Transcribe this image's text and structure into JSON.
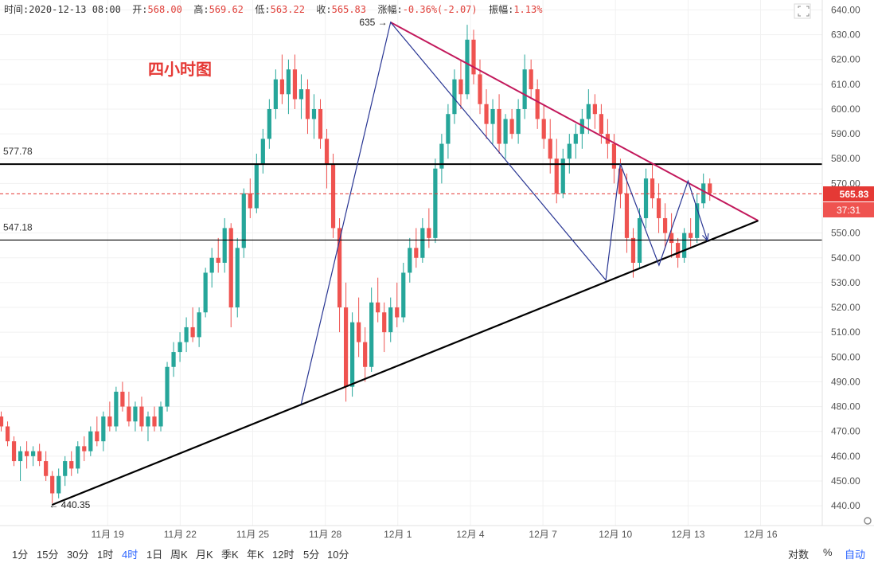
{
  "ohlc": {
    "time_label": "时间:",
    "time": "2020-12-13 08:00",
    "open_label": "开:",
    "open": "568.00",
    "high_label": "高:",
    "high": "569.62",
    "low_label": "低:",
    "low": "563.22",
    "close_label": "收:",
    "close": "565.83",
    "change_label": "涨幅:",
    "change": "-0.36%(-2.07)",
    "amplitude_label": "振幅:",
    "amplitude": "1.13%"
  },
  "chart_title": "四小时图",
  "periods": [
    {
      "label": "1分",
      "active": false
    },
    {
      "label": "15分",
      "active": false
    },
    {
      "label": "30分",
      "active": false
    },
    {
      "label": "1时",
      "active": false
    },
    {
      "label": "4时",
      "active": true
    },
    {
      "label": "1日",
      "active": false
    },
    {
      "label": "周K",
      "active": false
    },
    {
      "label": "月K",
      "active": false
    },
    {
      "label": "季K",
      "active": false
    },
    {
      "label": "年K",
      "active": false
    },
    {
      "label": "12时",
      "active": false
    },
    {
      "label": "5分",
      "active": false
    },
    {
      "label": "10分",
      "active": false
    }
  ],
  "scale_controls": {
    "log": "对数",
    "percent": "%",
    "auto": "自动"
  },
  "colors": {
    "up": "#26a69a",
    "down": "#ef5350",
    "resistance": "#c2185b",
    "wave": "#283593",
    "support": "#000000",
    "current": "#e53935"
  },
  "chart_data": {
    "type": "candlestick",
    "title": "四小时图",
    "ylim": [
      432,
      644
    ],
    "y_ticks": [
      "440.00",
      "450.00",
      "460.00",
      "470.00",
      "480.00",
      "490.00",
      "500.00",
      "510.00",
      "520.00",
      "530.00",
      "540.00",
      "550.00",
      "560.00",
      "570.00",
      "580.00",
      "590.00",
      "600.00",
      "610.00",
      "620.00",
      "630.00",
      "640.00"
    ],
    "x_ticks": [
      {
        "label": "11月 19",
        "day": 19
      },
      {
        "label": "11月 22",
        "day": 22
      },
      {
        "label": "11月 25",
        "day": 25
      },
      {
        "label": "11月 28",
        "day": 28
      },
      {
        "label": "12月 1",
        "day": 31
      },
      {
        "label": "12月 4",
        "day": 34
      },
      {
        "label": "12月 7",
        "day": 37
      },
      {
        "label": "12月 10",
        "day": 40
      },
      {
        "label": "12月 13",
        "day": 43
      },
      {
        "label": "12月 16",
        "day": 46
      }
    ],
    "x_range_days": [
      14.55,
      48.55
    ],
    "current_price": "565.83",
    "countdown": "37:31",
    "horizontal_levels": [
      {
        "label": "577.78",
        "value": 577.78
      },
      {
        "label": "547.18",
        "value": 547.18
      }
    ],
    "point_labels": [
      {
        "text": "635 →",
        "day": 30.7,
        "value": 635
      },
      {
        "text": "← 440.35",
        "day": 16.7,
        "value": 440.35
      }
    ],
    "resistance_line": [
      [
        30.7,
        635
      ],
      [
        45.9,
        555
      ]
    ],
    "support_line": [
      [
        16.7,
        440.35
      ],
      [
        45.9,
        555
      ]
    ],
    "wave_path": [
      [
        27.0,
        481
      ],
      [
        30.7,
        635
      ],
      [
        39.6,
        531
      ],
      [
        40.2,
        578
      ],
      [
        41.8,
        537
      ],
      [
        43.0,
        571
      ],
      [
        43.8,
        547
      ]
    ],
    "candles_ohlc": [
      [
        476,
        478,
        470,
        472
      ],
      [
        472,
        474,
        464,
        466
      ],
      [
        466,
        468,
        456,
        458
      ],
      [
        458,
        464,
        450,
        462
      ],
      [
        462,
        466,
        455,
        460
      ],
      [
        460,
        464,
        456,
        462
      ],
      [
        462,
        465,
        456,
        458
      ],
      [
        458,
        462,
        450,
        452
      ],
      [
        452,
        454,
        441,
        445
      ],
      [
        445,
        455,
        443,
        452
      ],
      [
        452,
        460,
        448,
        458
      ],
      [
        458,
        462,
        452,
        455
      ],
      [
        455,
        466,
        453,
        464
      ],
      [
        464,
        468,
        458,
        462
      ],
      [
        462,
        472,
        460,
        470
      ],
      [
        470,
        476,
        464,
        466
      ],
      [
        466,
        478,
        462,
        476
      ],
      [
        476,
        482,
        470,
        472
      ],
      [
        472,
        488,
        470,
        486
      ],
      [
        486,
        490,
        478,
        480
      ],
      [
        480,
        486,
        472,
        474
      ],
      [
        474,
        482,
        470,
        480
      ],
      [
        480,
        484,
        470,
        472
      ],
      [
        472,
        478,
        466,
        476
      ],
      [
        476,
        480,
        470,
        472
      ],
      [
        472,
        482,
        470,
        480
      ],
      [
        480,
        498,
        478,
        496
      ],
      [
        496,
        506,
        492,
        502
      ],
      [
        502,
        510,
        498,
        506
      ],
      [
        506,
        516,
        502,
        512
      ],
      [
        512,
        520,
        506,
        508
      ],
      [
        508,
        520,
        504,
        518
      ],
      [
        518,
        536,
        516,
        534
      ],
      [
        534,
        544,
        528,
        540
      ],
      [
        540,
        548,
        534,
        538
      ],
      [
        538,
        556,
        534,
        552
      ],
      [
        552,
        554,
        512,
        520
      ],
      [
        520,
        548,
        516,
        544
      ],
      [
        544,
        568,
        540,
        566
      ],
      [
        566,
        572,
        556,
        560
      ],
      [
        560,
        582,
        558,
        578
      ],
      [
        578,
        592,
        574,
        588
      ],
      [
        588,
        604,
        584,
        600
      ],
      [
        600,
        616,
        596,
        612
      ],
      [
        612,
        622,
        602,
        606
      ],
      [
        606,
        620,
        598,
        616
      ],
      [
        616,
        622,
        600,
        604
      ],
      [
        604,
        614,
        596,
        608
      ],
      [
        608,
        612,
        590,
        596
      ],
      [
        596,
        606,
        588,
        600
      ],
      [
        600,
        604,
        584,
        588
      ],
      [
        588,
        592,
        568,
        578
      ],
      [
        578,
        582,
        548,
        552
      ],
      [
        552,
        556,
        510,
        520
      ],
      [
        520,
        530,
        482,
        488
      ],
      [
        488,
        518,
        484,
        514
      ],
      [
        514,
        524,
        500,
        506
      ],
      [
        506,
        512,
        490,
        496
      ],
      [
        496,
        528,
        494,
        522
      ],
      [
        522,
        532,
        514,
        518
      ],
      [
        518,
        522,
        502,
        510
      ],
      [
        510,
        524,
        506,
        520
      ],
      [
        520,
        530,
        512,
        516
      ],
      [
        516,
        538,
        514,
        534
      ],
      [
        534,
        548,
        530,
        544
      ],
      [
        544,
        552,
        536,
        540
      ],
      [
        540,
        556,
        538,
        552
      ],
      [
        552,
        560,
        544,
        548
      ],
      [
        548,
        580,
        546,
        576
      ],
      [
        576,
        590,
        570,
        586
      ],
      [
        586,
        602,
        580,
        598
      ],
      [
        598,
        616,
        594,
        612
      ],
      [
        612,
        620,
        600,
        606
      ],
      [
        606,
        634,
        604,
        628
      ],
      [
        628,
        632,
        610,
        614
      ],
      [
        614,
        620,
        598,
        602
      ],
      [
        602,
        608,
        588,
        594
      ],
      [
        594,
        604,
        586,
        600
      ],
      [
        600,
        606,
        582,
        586
      ],
      [
        586,
        598,
        580,
        596
      ],
      [
        596,
        600,
        588,
        590
      ],
      [
        590,
        604,
        586,
        600
      ],
      [
        600,
        622,
        596,
        616
      ],
      [
        616,
        620,
        604,
        608
      ],
      [
        608,
        612,
        592,
        596
      ],
      [
        596,
        602,
        584,
        588
      ],
      [
        588,
        596,
        574,
        580
      ],
      [
        580,
        588,
        562,
        566
      ],
      [
        566,
        584,
        564,
        580
      ],
      [
        580,
        590,
        574,
        586
      ],
      [
        586,
        594,
        580,
        590
      ],
      [
        590,
        600,
        584,
        596
      ],
      [
        596,
        608,
        590,
        602
      ],
      [
        602,
        606,
        592,
        598
      ],
      [
        598,
        602,
        586,
        590
      ],
      [
        590,
        596,
        580,
        586
      ],
      [
        586,
        590,
        570,
        576
      ],
      [
        576,
        580,
        560,
        566
      ],
      [
        566,
        574,
        542,
        548
      ],
      [
        548,
        552,
        532,
        538
      ],
      [
        538,
        560,
        536,
        556
      ],
      [
        556,
        576,
        552,
        572
      ],
      [
        572,
        578,
        560,
        564
      ],
      [
        564,
        570,
        550,
        556
      ],
      [
        556,
        562,
        544,
        550
      ],
      [
        550,
        558,
        540,
        546
      ],
      [
        546,
        548,
        536,
        540
      ],
      [
        540,
        552,
        538,
        550
      ],
      [
        550,
        556,
        544,
        548
      ],
      [
        548,
        566,
        546,
        562
      ],
      [
        562,
        574,
        560,
        570
      ],
      [
        570,
        572,
        563,
        566
      ]
    ]
  }
}
